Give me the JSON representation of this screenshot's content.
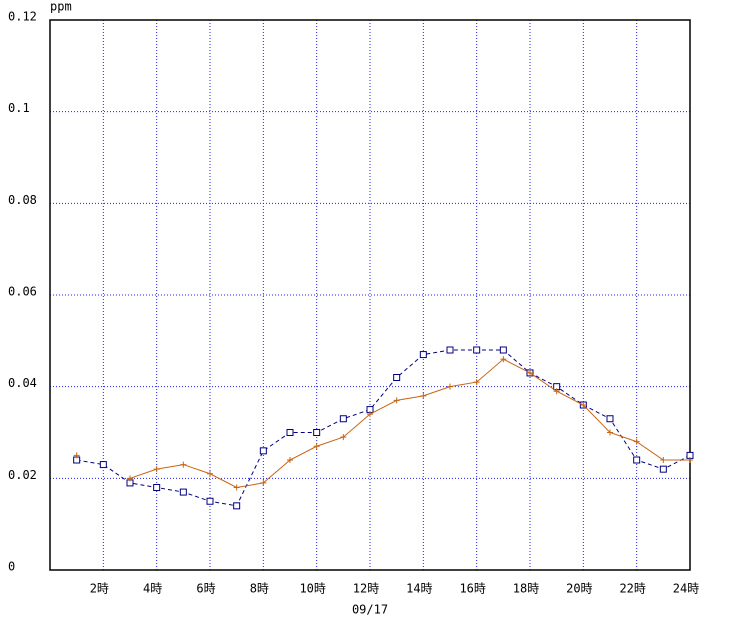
{
  "chart_data": {
    "type": "line",
    "y_label": "ppm",
    "x_label": "09/17",
    "x": [
      1,
      2,
      3,
      4,
      5,
      6,
      7,
      8,
      9,
      10,
      11,
      12,
      13,
      14,
      15,
      16,
      17,
      18,
      19,
      20,
      21,
      22,
      23,
      24
    ],
    "xlim": [
      0,
      24
    ],
    "xticks": [
      {
        "value": 2,
        "label": "2時"
      },
      {
        "value": 4,
        "label": "4時"
      },
      {
        "value": 6,
        "label": "6時"
      },
      {
        "value": 8,
        "label": "8時"
      },
      {
        "value": 10,
        "label": "10時"
      },
      {
        "value": 12,
        "label": "12時"
      },
      {
        "value": 14,
        "label": "14時"
      },
      {
        "value": 16,
        "label": "16時"
      },
      {
        "value": 18,
        "label": "18時"
      },
      {
        "value": 20,
        "label": "20時"
      },
      {
        "value": 22,
        "label": "22時"
      },
      {
        "value": 24,
        "label": "24時"
      }
    ],
    "ylim": [
      0,
      0.12
    ],
    "yticks": [
      0,
      0.02,
      0.04,
      0.06,
      0.08,
      0.1,
      0.12
    ],
    "grid": true,
    "series": [
      {
        "color": "#000080",
        "marker": "square",
        "dashed": true,
        "values": [
          0.024,
          0.023,
          0.019,
          0.018,
          0.017,
          0.015,
          0.014,
          0.026,
          0.03,
          0.03,
          0.033,
          0.035,
          0.042,
          0.047,
          0.048,
          0.048,
          0.048,
          0.043,
          0.04,
          0.036,
          0.033,
          0.024,
          0.022,
          0.025
        ]
      },
      {
        "color": "#c86414",
        "marker": "plus",
        "dashed": false,
        "values": [
          0.025,
          null,
          0.02,
          0.022,
          0.023,
          0.021,
          0.018,
          0.019,
          0.024,
          0.027,
          0.029,
          0.034,
          0.037,
          0.038,
          0.04,
          0.041,
          0.046,
          0.043,
          0.039,
          0.036,
          0.03,
          0.028,
          0.024,
          0.024
        ]
      }
    ]
  }
}
